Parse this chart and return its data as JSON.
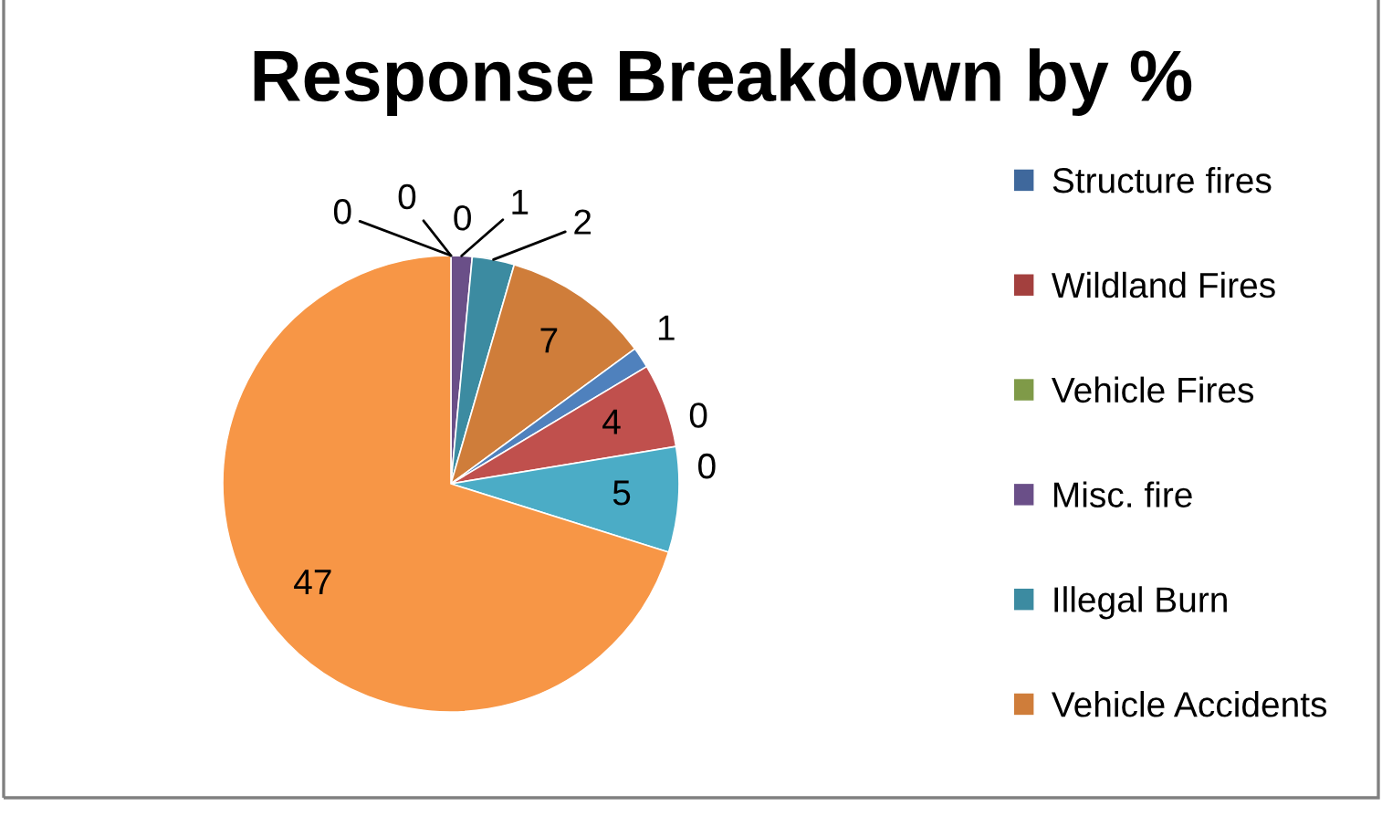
{
  "chart_data": {
    "type": "pie",
    "title": "Response Breakdown by %",
    "categories": [
      "Structure fires",
      "Wildland Fires",
      "Vehicle Fires",
      "Misc. fire",
      "Illegal Burn",
      "Vehicle Accidents",
      null,
      null,
      null,
      null,
      null,
      null
    ],
    "values": [
      0,
      0,
      0,
      1,
      2,
      7,
      1,
      4,
      0,
      0,
      5,
      47
    ],
    "value_labels": [
      "0",
      "0",
      "0",
      "1",
      "2",
      "7",
      "1",
      "4",
      "0",
      "0",
      "5",
      "47"
    ],
    "colors": [
      "#3f689c",
      "#a3403e",
      "#7f9a48",
      "#6a4f88",
      "#3c8ba1",
      "#cf7d3a",
      "#4f81bd",
      "#c0504d",
      "#9bbb59",
      "#8064a2",
      "#4bacc6",
      "#f79646"
    ],
    "legend": "right"
  }
}
